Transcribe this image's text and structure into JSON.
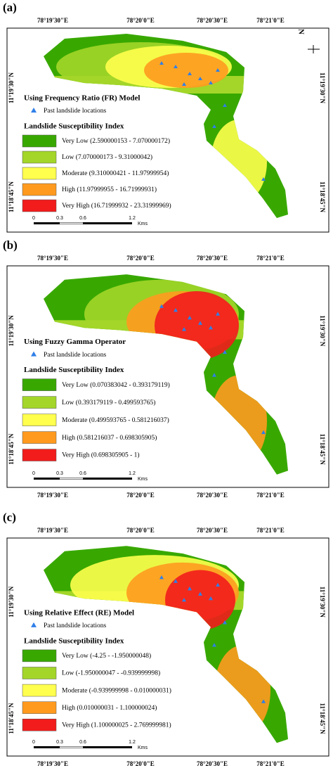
{
  "panels": [
    {
      "label": "(a)",
      "model_title": "Using Frequency Ratio (FR) Model",
      "past_label": "Past landslide locations",
      "legend_title": "Landslide Susceptibility Index",
      "legend": [
        "Very Low (2.590000153 - 7.070000172)",
        "Low (7.070000173 - 9.31000042)",
        "Moderate (9.310000421 - 11.97999954)",
        "High (11.97999955 - 16.71999931)",
        "Very High (16.71999932 - 23.31999969)"
      ],
      "lon_labels": [
        "78°19'30\"E",
        "78°20'0\"E",
        "78°20'30\"E",
        "78°21'0\"E"
      ],
      "lat_labels": [
        "11°19'30\"N",
        "11°18'45\"N"
      ],
      "north": "N",
      "scale": [
        "0",
        "0.3",
        "0.6",
        "1.2",
        "Kms"
      ]
    },
    {
      "label": "(b)",
      "model_title": "Using Fuzzy Gamma Operator",
      "past_label": "Past landslide locations",
      "legend_title": "Landslide Susceptibility Index",
      "legend": [
        "Very Low (0.070383042 - 0.393179119)",
        "Low (0.393179119 - 0.499593765)",
        "Moderate (0.499593765 - 0.581216037)",
        "High (0.581216037 - 0.698305905)",
        "Very High (0.698305905 - 1)"
      ],
      "lon_labels": [
        "78°19'30\"E",
        "78°20'0\"E",
        "78°20'30\"E",
        "78°21'0\"E"
      ],
      "lon_labels_bottom": [
        "78°19'30\"E",
        "78°20'0\"E",
        "78°20'30\"E",
        "78°21'0\"E"
      ],
      "lat_labels": [
        "11°19'30\"N",
        "11°18'45\"N"
      ],
      "scale": [
        "0",
        "0.3",
        "0.6",
        "1.2",
        "Kms"
      ]
    },
    {
      "label": "(c)",
      "model_title": "Using Relative Effect (RE) Model",
      "past_label": "Past landslide locations",
      "legend_title": "Landslide Susceptibility Index",
      "legend": [
        "Very Low (-4.25 - -1.950000048)",
        "Low (-1.950000047 - -0.939999998)",
        "Moderate (-0.939999998 - 0.010000031)",
        "High (0.010000031 - 1.100000024)",
        "Very High (1.100000025 - 2.769999981)"
      ],
      "lon_labels": [
        "78°19'30\"E",
        "78°20'0\"E",
        "78°20'30\"E",
        "78°21'0\"E"
      ],
      "lon_labels_bottom": [
        "78°19'30\"E",
        "78°20'0\"E",
        "78°20'30\"E",
        "78°21'0\"E"
      ],
      "lat_labels": [
        "11°19'30\"N",
        "11°18'45\"N"
      ],
      "scale": [
        "0",
        "0.3",
        "0.6",
        "1.2",
        "Kms"
      ]
    }
  ]
}
